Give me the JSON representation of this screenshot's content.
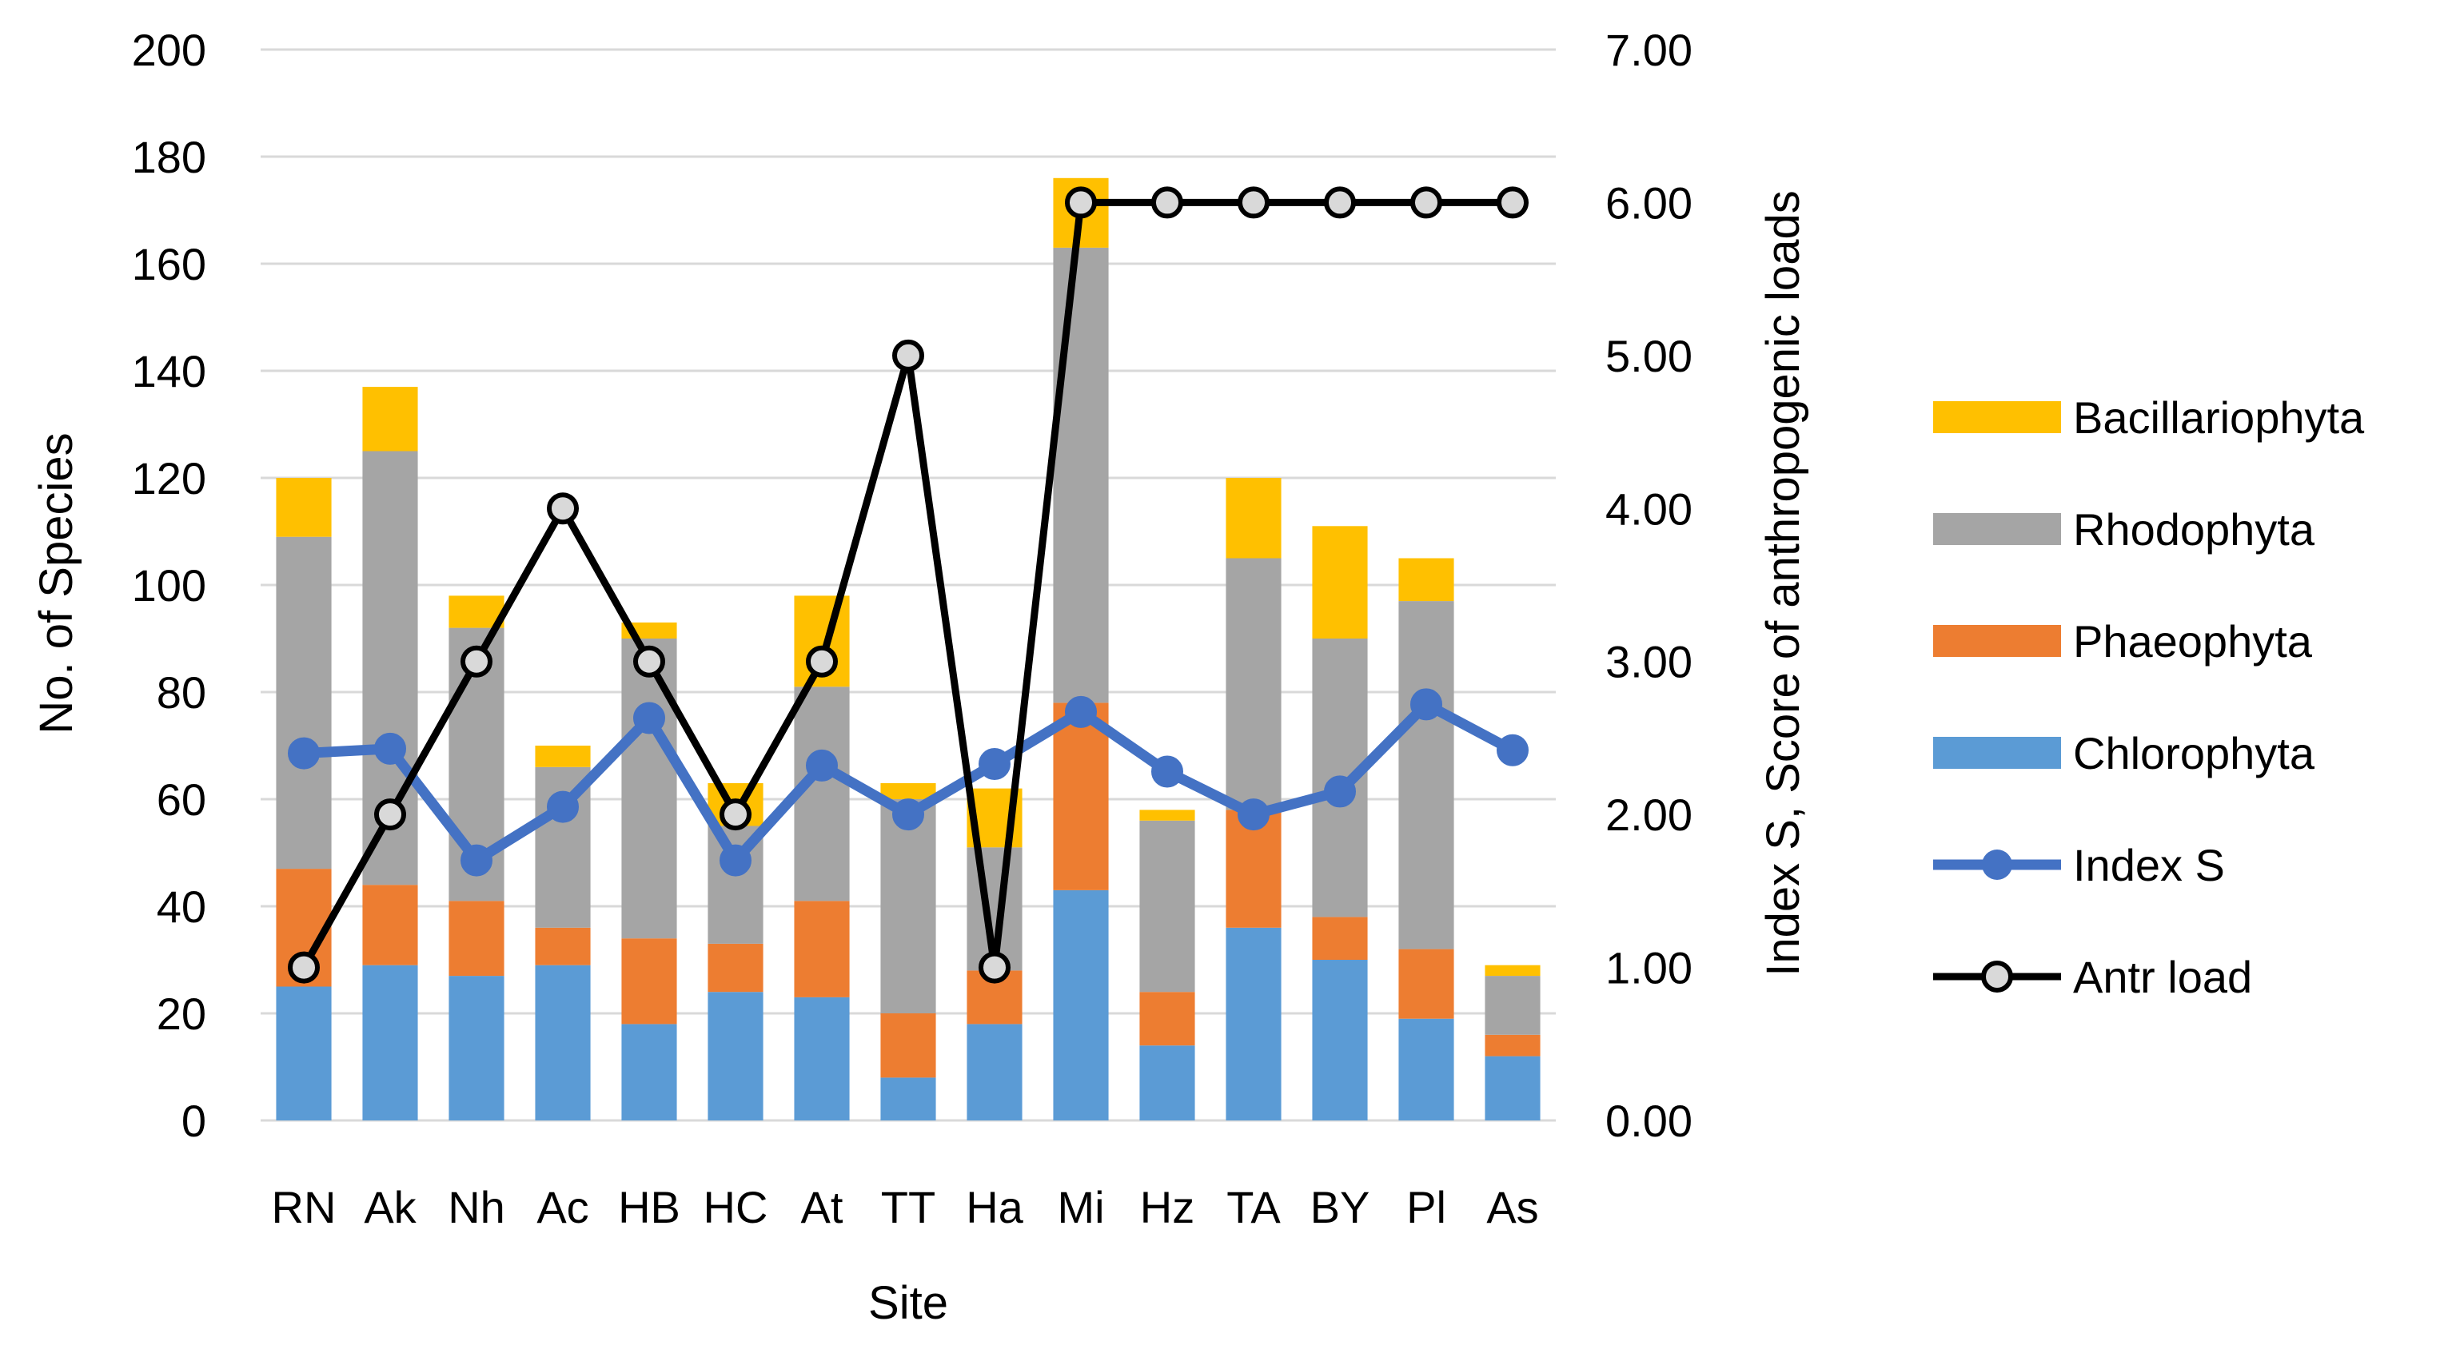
{
  "chart_data": {
    "type": "bar",
    "stacked": true,
    "categories": [
      "RN",
      "Ak",
      "Nh",
      "Ac",
      "HB",
      "HC",
      "At",
      "TT",
      "Ha",
      "Mi",
      "Hz",
      "TA",
      "BY",
      "Pl",
      "As"
    ],
    "series": [
      {
        "name": "Chlorophyta",
        "kind": "bar",
        "color": "#5b9bd5",
        "values": [
          25,
          29,
          27,
          29,
          18,
          24,
          23,
          8,
          18,
          43,
          14,
          36,
          30,
          19,
          12
        ]
      },
      {
        "name": "Phaeophyta",
        "kind": "bar",
        "color": "#ed7d31",
        "values": [
          22,
          15,
          14,
          7,
          16,
          9,
          18,
          12,
          10,
          35,
          10,
          22,
          8,
          13,
          4
        ]
      },
      {
        "name": "Rhodophyta",
        "kind": "bar",
        "color": "#a5a5a5",
        "values": [
          62,
          81,
          51,
          30,
          56,
          22,
          40,
          40,
          23,
          85,
          32,
          47,
          52,
          65,
          11
        ]
      },
      {
        "name": "Bacillariophyta",
        "kind": "bar",
        "color": "#ffc000",
        "values": [
          11,
          12,
          6,
          4,
          3,
          8,
          17,
          3,
          11,
          13,
          2,
          15,
          21,
          8,
          2
        ]
      },
      {
        "name": "Index S",
        "kind": "line",
        "axis": "right",
        "color": "#4472c4",
        "values": [
          2.4,
          2.43,
          1.7,
          2.05,
          2.63,
          1.7,
          2.32,
          2.0,
          2.33,
          2.67,
          2.28,
          2.0,
          2.15,
          2.72,
          2.42
        ]
      },
      {
        "name": "Antr load",
        "kind": "line",
        "axis": "right",
        "color": "#000000",
        "values": [
          1,
          2,
          3,
          4,
          3,
          2,
          3,
          5,
          1,
          6,
          6,
          6,
          6,
          6,
          6
        ]
      }
    ],
    "legend_order": [
      "Bacillariophyta",
      "Rhodophyta",
      "Phaeophyta",
      "Chlorophyta",
      "Index S",
      "Antr load"
    ],
    "xlabel": "Site",
    "ylabel": "No. of Species",
    "y2label": "Index S, Score of anthropogenic loads",
    "ylim": [
      0,
      200
    ],
    "y2lim": [
      0,
      7
    ],
    "yticks": [
      "0",
      "20",
      "40",
      "60",
      "80",
      "100",
      "120",
      "140",
      "160",
      "180",
      "200"
    ],
    "y2ticks": [
      "0.00",
      "1.00",
      "2.00",
      "3.00",
      "4.00",
      "5.00",
      "6.00",
      "7.00"
    ],
    "grid": true,
    "legend_position": "right"
  }
}
